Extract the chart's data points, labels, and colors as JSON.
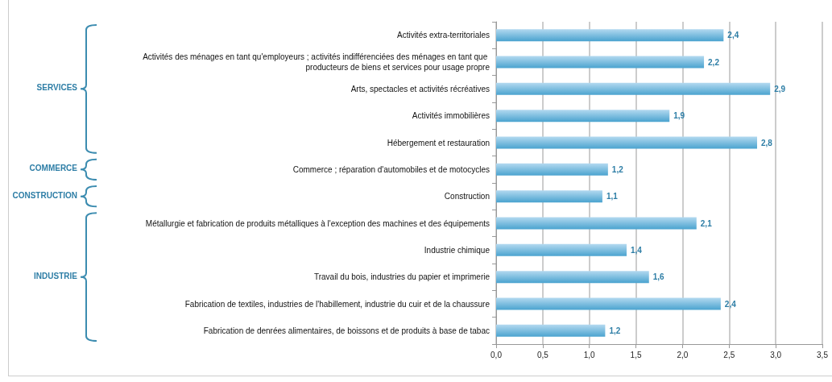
{
  "chart_data": {
    "type": "bar",
    "orientation": "horizontal",
    "categories": [
      "Activités extra-territoriales",
      "Activités des ménages en tant qu'employeurs ; activités indifférenciées des ménages en tant que producteurs de biens et services pour usage propre",
      "Arts, spectacles et activités récréatives",
      "Activités immobilières",
      "Hébergement et restauration",
      "Commerce ; réparation d'automobiles et de motocycles",
      "Construction",
      "Métallurgie et fabrication de produits métalliques à l'exception des machines et des équipements",
      "Industrie chimique",
      "Travail du bois, industries du papier et imprimerie",
      "Fabrication de textiles, industries de l'habillement, industrie du cuir et de la chaussure",
      "Fabrication de denrées alimentaires, de boissons et de produits à base de tabac"
    ],
    "values": [
      2.44,
      2.23,
      2.94,
      1.86,
      2.8,
      1.2,
      1.14,
      2.15,
      1.4,
      1.64,
      2.41,
      1.17
    ],
    "value_labels": [
      "2,4",
      "2,2",
      "2,9",
      "1,9",
      "2,8",
      "1,2",
      "1,1",
      "2,1",
      "1,4",
      "1,6",
      "2,4",
      "1,2"
    ],
    "color": "#4aa3cf",
    "xlim": [
      0,
      3.5
    ],
    "xticks": [
      {
        "value": 0,
        "label": "0,0"
      },
      {
        "value": 0.5,
        "label": "0,5"
      },
      {
        "value": 1,
        "label": "1,0"
      },
      {
        "value": 1.5,
        "label": "1,5"
      },
      {
        "value": 2,
        "label": "2,0"
      },
      {
        "value": 2.5,
        "label": "2,5"
      },
      {
        "value": 3,
        "label": "3,0"
      },
      {
        "value": 3.5,
        "label": "3,5"
      }
    ],
    "grid": "x",
    "annotations": [
      "SERVICES",
      "COMMERCE",
      "CONSTRUCTION",
      "INDUSTRIE"
    ]
  }
}
